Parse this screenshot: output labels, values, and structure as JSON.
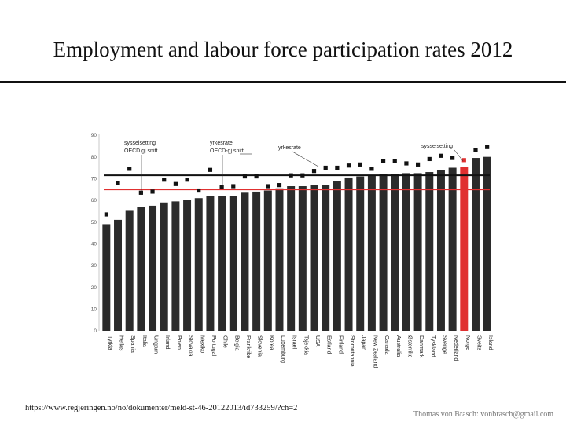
{
  "title": "Employment and labour force participation rates 2012",
  "source_url": "https://www.regjeringen.no/no/dokumenter/meld-st-46-20122013/id733259/?ch=2",
  "credit": "Thomas von Brasch: vonbrasch@gmail.com",
  "chart_data": {
    "type": "bar",
    "ylim": [
      0,
      90
    ],
    "yticks": [
      0,
      10,
      20,
      30,
      40,
      50,
      60,
      70,
      80,
      90
    ],
    "grid": false,
    "categories": [
      "Tyrkia",
      "Hellas",
      "Spania",
      "Italia",
      "Ungarn",
      "Irland",
      "Polen",
      "Slovakia",
      "Mexiko",
      "Portugal",
      "Chile",
      "Belgia",
      "Frankrike",
      "Slovenia",
      "Korea",
      "Luxemburg",
      "Israel",
      "Tsjekkia",
      "USA",
      "Estland",
      "Finland",
      "Storbritannia",
      "Japan",
      "New Zealand",
      "Canada",
      "Australia",
      "Østerrike",
      "Danmark",
      "Tyskland",
      "Sverige",
      "Nederland",
      "Norge",
      "Sveits",
      "Island"
    ],
    "series": [
      {
        "values": [
          49,
          51,
          55.5,
          57,
          57.5,
          59,
          59.5,
          60,
          61,
          62,
          62,
          62,
          63.5,
          64,
          64.5,
          65.5,
          66.5,
          66.5,
          67,
          67,
          69,
          70.5,
          71,
          71.5,
          72,
          72,
          72.5,
          72.5,
          73,
          74,
          75,
          75.5,
          79.5,
          80
        ]
      },
      {
        "values": [
          53.5,
          68,
          74.5,
          63.5,
          64,
          69.5,
          67.5,
          69.5,
          64.5,
          74,
          66,
          66.5,
          71,
          71,
          66.5,
          67,
          71.5,
          71.5,
          73.5,
          75,
          75,
          76,
          76.5,
          74.5,
          78,
          78,
          77,
          76.5,
          79,
          80.5,
          79.5,
          78.5,
          83,
          84.5
        ]
      }
    ],
    "reference_lines": [
      {
        "value": 71.5,
        "color": "#111111"
      },
      {
        "value": 65,
        "color": "#e03030"
      }
    ],
    "highlight": {
      "category": "Norge",
      "color": "#e03030"
    },
    "annotations": [
      "sysselsetting OECD gj.snitt",
      "yrkesrate OECD-gj.snitt",
      "yrkesrate",
      "sysselsetting"
    ]
  },
  "colors": {
    "bar": "#2b2b2b",
    "highlight_bar": "#e03030",
    "marker": "#111111",
    "highlight_marker": "#e03030"
  }
}
